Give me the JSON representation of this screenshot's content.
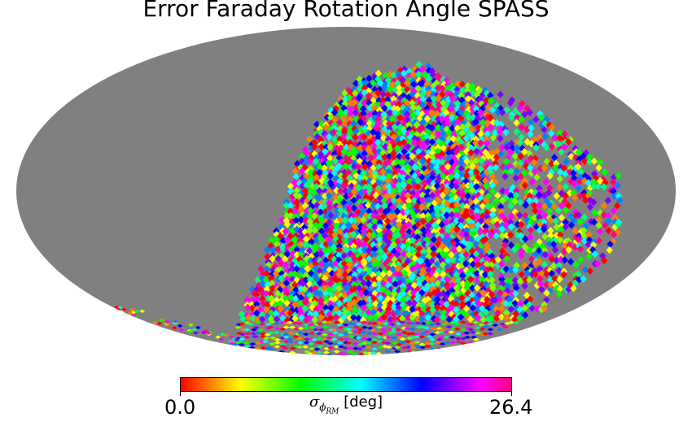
{
  "title": "Error Faraday Rotation Angle SPASS",
  "map": {
    "projection": "mollweide",
    "background_color": "#808080",
    "outside_color": "#ffffff"
  },
  "colorbar": {
    "min_label": "0.0",
    "max_label": "26.4",
    "symbol": "σ",
    "sub_symbol": "ϕ",
    "sub_sub": "RM",
    "unit": "[deg]",
    "colormap": [
      "#ff0000",
      "#ff8000",
      "#ffff00",
      "#80ff00",
      "#00ff00",
      "#00ff80",
      "#00ffff",
      "#0080ff",
      "#0000ff",
      "#8000ff",
      "#ff00ff",
      "#ff0080"
    ]
  }
}
